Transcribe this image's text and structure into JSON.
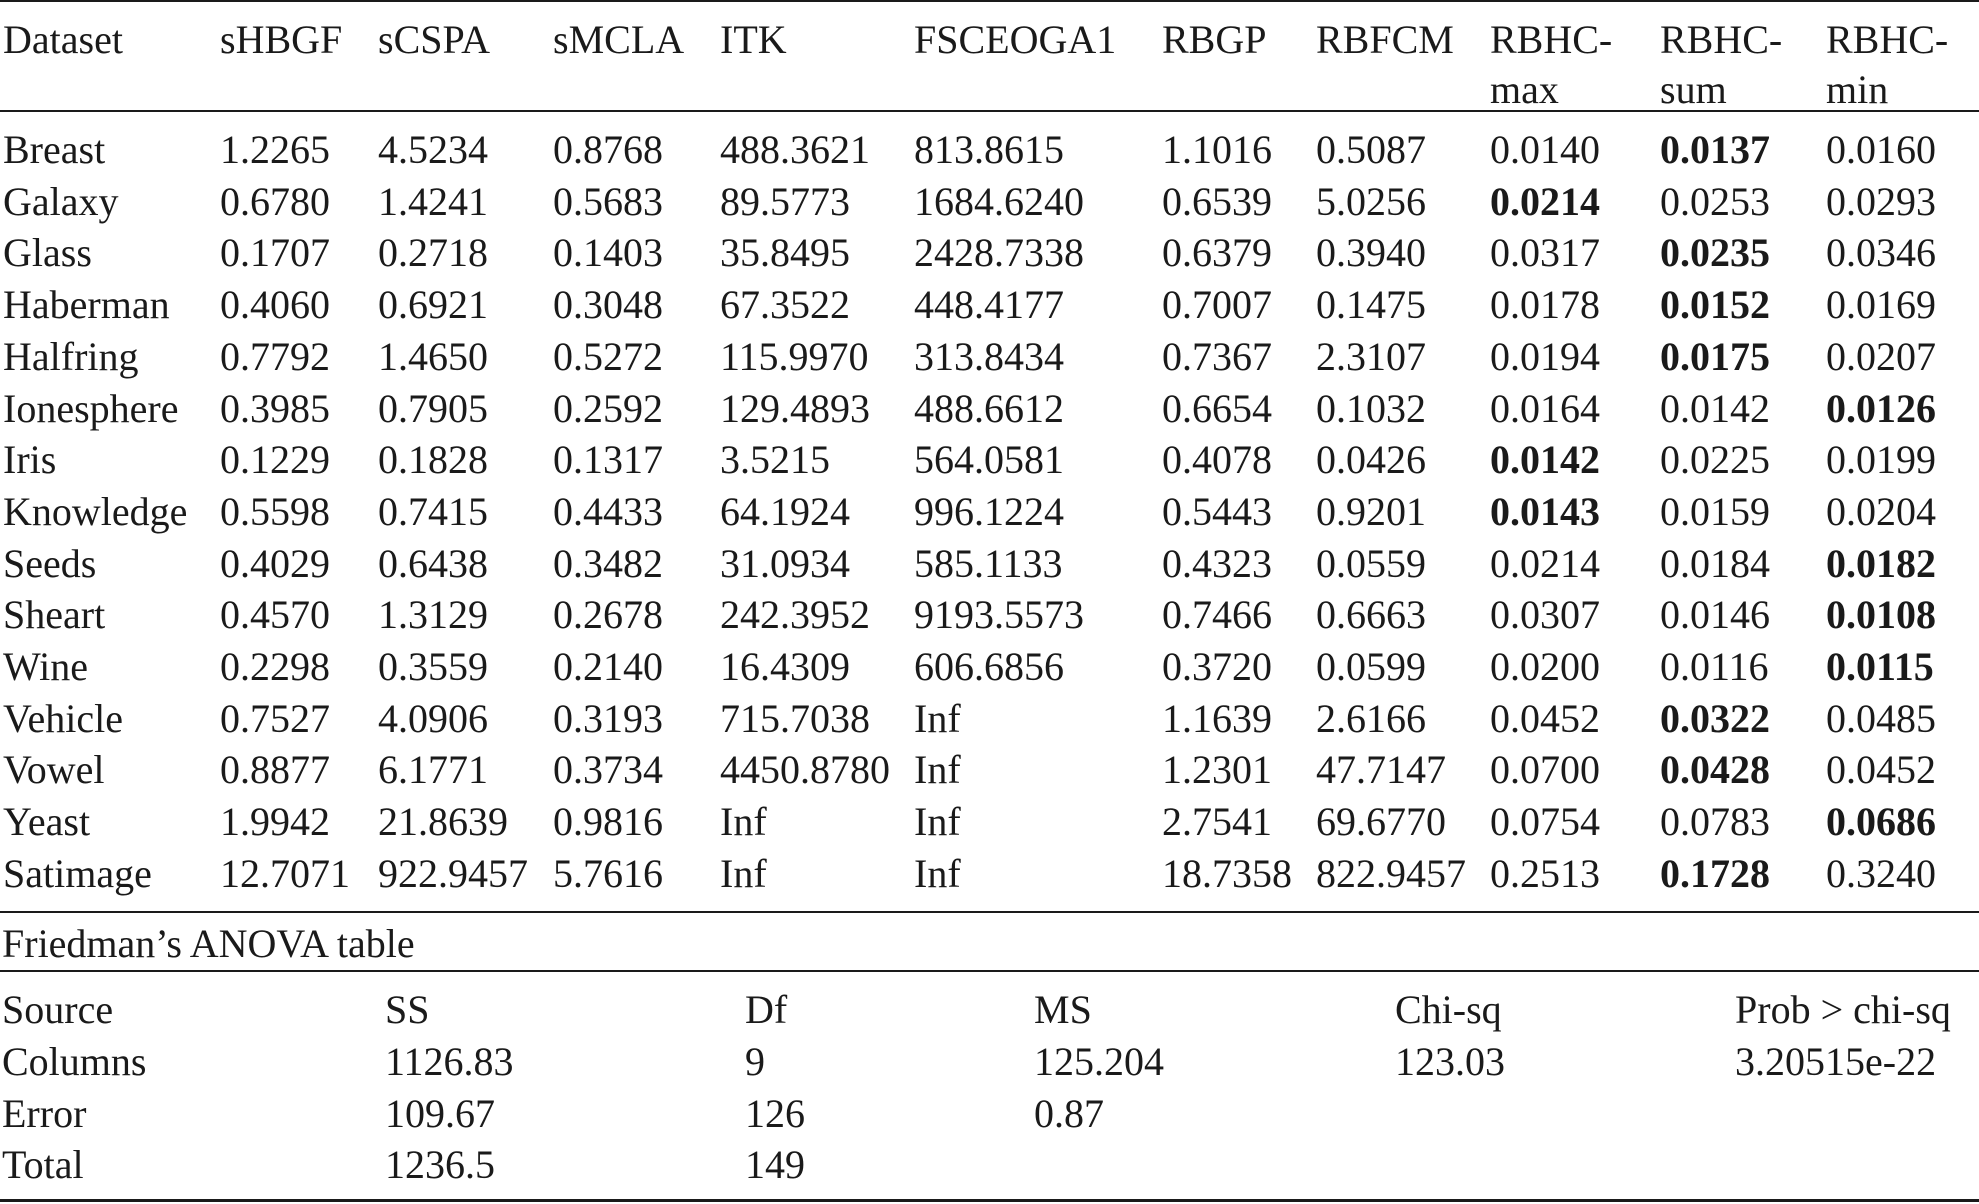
{
  "results_table": {
    "headers": [
      [
        "Dataset"
      ],
      [
        "sHBGF"
      ],
      [
        "sCSPA"
      ],
      [
        "sMCLA"
      ],
      [
        "ITK"
      ],
      [
        "FSCEOGA1"
      ],
      [
        "RBGP"
      ],
      [
        "RBFCM"
      ],
      [
        "RBHC-",
        "max"
      ],
      [
        "RBHC-",
        "sum"
      ],
      [
        "RBHC-",
        "min"
      ]
    ],
    "rows": [
      {
        "dataset": "Breast",
        "values": [
          "1.2265",
          "4.5234",
          "0.8768",
          "488.3621",
          "813.8615",
          "1.1016",
          "0.5087",
          "0.0140",
          "0.0137",
          "0.0160"
        ],
        "best": 8
      },
      {
        "dataset": "Galaxy",
        "values": [
          "0.6780",
          "1.4241",
          "0.5683",
          "89.5773",
          "1684.6240",
          "0.6539",
          "5.0256",
          "0.0214",
          "0.0253",
          "0.0293"
        ],
        "best": 7
      },
      {
        "dataset": "Glass",
        "values": [
          "0.1707",
          "0.2718",
          "0.1403",
          "35.8495",
          "2428.7338",
          "0.6379",
          "0.3940",
          "0.0317",
          "0.0235",
          "0.0346"
        ],
        "best": 8
      },
      {
        "dataset": "Haberman",
        "values": [
          "0.4060",
          "0.6921",
          "0.3048",
          "67.3522",
          "448.4177",
          "0.7007",
          "0.1475",
          "0.0178",
          "0.0152",
          "0.0169"
        ],
        "best": 8
      },
      {
        "dataset": "Halfring",
        "values": [
          "0.7792",
          "1.4650",
          "0.5272",
          "115.9970",
          "313.8434",
          "0.7367",
          "2.3107",
          "0.0194",
          "0.0175",
          "0.0207"
        ],
        "best": 8
      },
      {
        "dataset": "Ionesphere",
        "values": [
          "0.3985",
          "0.7905",
          "0.2592",
          "129.4893",
          "488.6612",
          "0.6654",
          "0.1032",
          "0.0164",
          "0.0142",
          "0.0126"
        ],
        "best": 9
      },
      {
        "dataset": "Iris",
        "values": [
          "0.1229",
          "0.1828",
          "0.1317",
          "3.5215",
          "564.0581",
          "0.4078",
          "0.0426",
          "0.0142",
          "0.0225",
          "0.0199"
        ],
        "best": 7
      },
      {
        "dataset": "Knowledge",
        "values": [
          "0.5598",
          "0.7415",
          "0.4433",
          "64.1924",
          "996.1224",
          "0.5443",
          "0.9201",
          "0.0143",
          "0.0159",
          "0.0204"
        ],
        "best": 7
      },
      {
        "dataset": "Seeds",
        "values": [
          "0.4029",
          "0.6438",
          "0.3482",
          "31.0934",
          "585.1133",
          "0.4323",
          "0.0559",
          "0.0214",
          "0.0184",
          "0.0182"
        ],
        "best": 9
      },
      {
        "dataset": "Sheart",
        "values": [
          "0.4570",
          "1.3129",
          "0.2678",
          "242.3952",
          "9193.5573",
          "0.7466",
          "0.6663",
          "0.0307",
          "0.0146",
          "0.0108"
        ],
        "best": 9
      },
      {
        "dataset": "Wine",
        "values": [
          "0.2298",
          "0.3559",
          "0.2140",
          "16.4309",
          "606.6856",
          "0.3720",
          "0.0599",
          "0.0200",
          "0.0116",
          "0.0115"
        ],
        "best": 9
      },
      {
        "dataset": "Vehicle",
        "values": [
          "0.7527",
          "4.0906",
          "0.3193",
          "715.7038",
          "Inf",
          "1.1639",
          "2.6166",
          "0.0452",
          "0.0322",
          "0.0485"
        ],
        "best": 8
      },
      {
        "dataset": "Vowel",
        "values": [
          "0.8877",
          "6.1771",
          "0.3734",
          "4450.8780",
          "Inf",
          "1.2301",
          "47.7147",
          "0.0700",
          "0.0428",
          "0.0452"
        ],
        "best": 8
      },
      {
        "dataset": "Yeast",
        "values": [
          "1.9942",
          "21.8639",
          "0.9816",
          "Inf",
          "Inf",
          "2.7541",
          "69.6770",
          "0.0754",
          "0.0783",
          "0.0686"
        ],
        "best": 9
      },
      {
        "dataset": "Satimage",
        "values": [
          "12.7071",
          "922.9457",
          "5.7616",
          "Inf",
          "Inf",
          "18.7358",
          "822.9457",
          "0.2513",
          "0.1728",
          "0.3240"
        ],
        "best": 8
      }
    ]
  },
  "anova": {
    "title": "Friedman’s ANOVA table",
    "headers": [
      "Source",
      "SS",
      "Df",
      "MS",
      "Chi-sq",
      "Prob > chi-sq"
    ],
    "rows": [
      [
        "Columns",
        "1126.83",
        "9",
        "125.204",
        "123.03",
        "3.20515e-22"
      ],
      [
        "Error",
        "109.67",
        "126",
        "0.87",
        "",
        ""
      ],
      [
        "Total",
        "1236.5",
        "149",
        "",
        "",
        ""
      ]
    ]
  }
}
